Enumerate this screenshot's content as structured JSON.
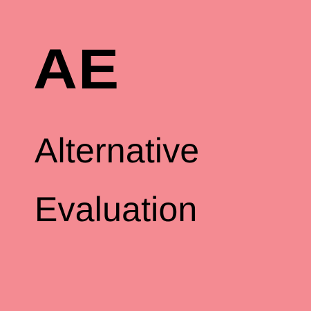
{
  "card": {
    "abbreviation": "AE",
    "title_line1": "Alternative",
    "title_line2": "Evaluation",
    "background_color": "#f48b92",
    "text_color": "#000000"
  }
}
